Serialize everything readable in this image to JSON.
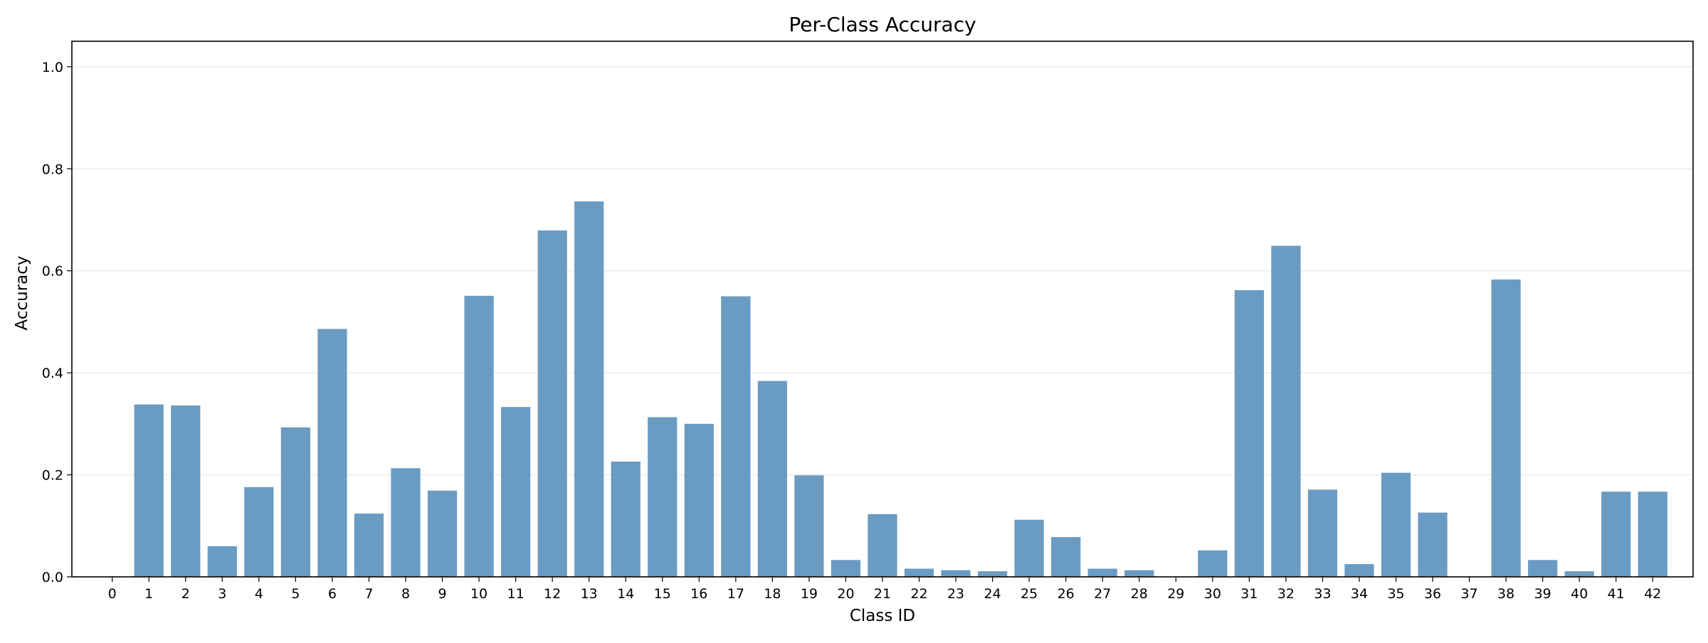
{
  "chart_data": {
    "type": "bar",
    "title": "Per-Class Accuracy",
    "xlabel": "Class ID",
    "ylabel": "Accuracy",
    "categories": [
      "0",
      "1",
      "2",
      "3",
      "4",
      "5",
      "6",
      "7",
      "8",
      "9",
      "10",
      "11",
      "12",
      "13",
      "14",
      "15",
      "16",
      "17",
      "18",
      "19",
      "20",
      "21",
      "22",
      "23",
      "24",
      "25",
      "26",
      "27",
      "28",
      "29",
      "30",
      "31",
      "32",
      "33",
      "34",
      "35",
      "36",
      "37",
      "38",
      "39",
      "40",
      "41",
      "42"
    ],
    "values": [
      0.0,
      0.338,
      0.336,
      0.06,
      0.176,
      0.293,
      0.486,
      0.124,
      0.213,
      0.169,
      0.551,
      0.333,
      0.679,
      0.736,
      0.226,
      0.313,
      0.3,
      0.55,
      0.384,
      0.199,
      0.033,
      0.123,
      0.016,
      0.013,
      0.011,
      0.112,
      0.078,
      0.016,
      0.013,
      0.0,
      0.052,
      0.562,
      0.649,
      0.171,
      0.025,
      0.204,
      0.126,
      0.0,
      0.583,
      0.033,
      0.011,
      0.167,
      0.167
    ],
    "ylim": [
      0,
      1.05
    ],
    "yticks": [
      "0.0",
      "0.2",
      "0.4",
      "0.6",
      "0.8",
      "1.0"
    ],
    "grid": true,
    "bar_color": "#6a9bc3",
    "text_color": "#000000",
    "grid_color": "#e6e6e6"
  }
}
